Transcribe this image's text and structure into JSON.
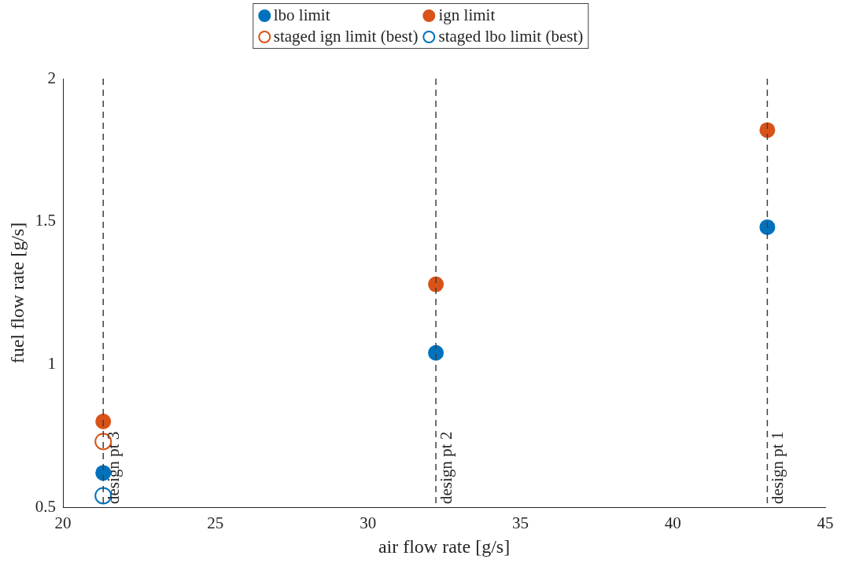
{
  "chart_data": {
    "type": "scatter",
    "xlabel": "air flow rate [g/s]",
    "ylabel": "fuel flow rate [g/s]",
    "xlim": [
      20,
      45
    ],
    "xticks": [
      20,
      25,
      30,
      35,
      40,
      45
    ],
    "ylim": [
      0.5,
      2
    ],
    "yticks": [
      0.5,
      1,
      1.5,
      2
    ],
    "grid": false,
    "legend": "top",
    "marker": "circle",
    "series": [
      {
        "name": "lbo limit",
        "color": "#0072bd",
        "x": [
          21.32,
          32.23,
          43.1
        ],
        "values": [
          0.62,
          1.04,
          1.48
        ]
      },
      {
        "name": "ign limit",
        "color": "#d95319",
        "x": [
          21.32,
          32.23,
          43.1
        ],
        "values": [
          0.8,
          1.28,
          1.82
        ]
      },
      {
        "name": "staged ign limit (best)",
        "color": "#d95319",
        "x": [
          21.32
        ],
        "values": [
          0.73
        ]
      },
      {
        "name": "staged lbo limit (best)",
        "color": "#0072bd",
        "x": [
          21.32
        ],
        "values": [
          0.54
        ]
      }
    ],
    "ref_lines": [
      {
        "axis": "x",
        "value": 21.32,
        "label": "design pt 3",
        "color": "#404040",
        "line_style": "dashed"
      },
      {
        "axis": "x",
        "value": 32.23,
        "label": "design pt 2",
        "color": "#404040",
        "line_style": "dashed"
      },
      {
        "axis": "x",
        "value": 43.1,
        "label": "design pt 1",
        "color": "#404040",
        "line_style": "dashed"
      }
    ]
  }
}
